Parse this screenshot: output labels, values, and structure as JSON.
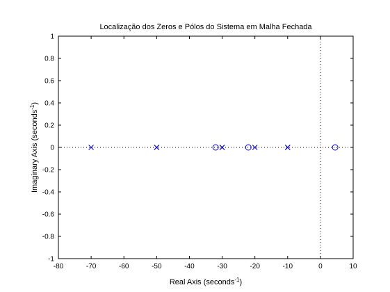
{
  "chart_data": {
    "type": "scatter",
    "title": "Localização dos Zeros e Pólos do Sistema em Malha Fechada",
    "xlabel": {
      "main": "Real Axis (seconds",
      "sup": "-1",
      "close": ")"
    },
    "ylabel": {
      "main": "Imaginary Axis (seconds",
      "sup": "-1",
      "close": ")"
    },
    "xlim": [
      -80,
      10
    ],
    "ylim": [
      -1,
      1
    ],
    "xticks": [
      -80,
      -70,
      -60,
      -50,
      -40,
      -30,
      -20,
      -10,
      0,
      10
    ],
    "yticks": [
      -1,
      -0.8,
      -0.6,
      -0.4,
      -0.2,
      0,
      0.2,
      0.4,
      0.6,
      0.8,
      1
    ],
    "xtick_labels": [
      "-80",
      "-70",
      "-60",
      "-50",
      "-40",
      "-30",
      "-20",
      "-10",
      "0",
      "10"
    ],
    "ytick_labels": [
      "-1",
      "-0.8",
      "-0.6",
      "-0.4",
      "-0.2",
      "0",
      "0.2",
      "0.4",
      "0.6",
      "0.8",
      "1"
    ],
    "grid": false,
    "color": "#0000ff",
    "series": [
      {
        "marker": "x",
        "points": [
          {
            "x": -70,
            "y": 0
          },
          {
            "x": -50,
            "y": 0
          },
          {
            "x": -50,
            "y": 0
          },
          {
            "x": -30,
            "y": 0
          },
          {
            "x": -30,
            "y": 0
          },
          {
            "x": -20,
            "y": 0
          },
          {
            "x": -10,
            "y": 0
          },
          {
            "x": -10,
            "y": 0
          }
        ]
      },
      {
        "marker": "o",
        "points": [
          {
            "x": -32,
            "y": 0
          },
          {
            "x": -22,
            "y": 0
          },
          {
            "x": 4.5,
            "y": 0
          }
        ]
      }
    ]
  }
}
